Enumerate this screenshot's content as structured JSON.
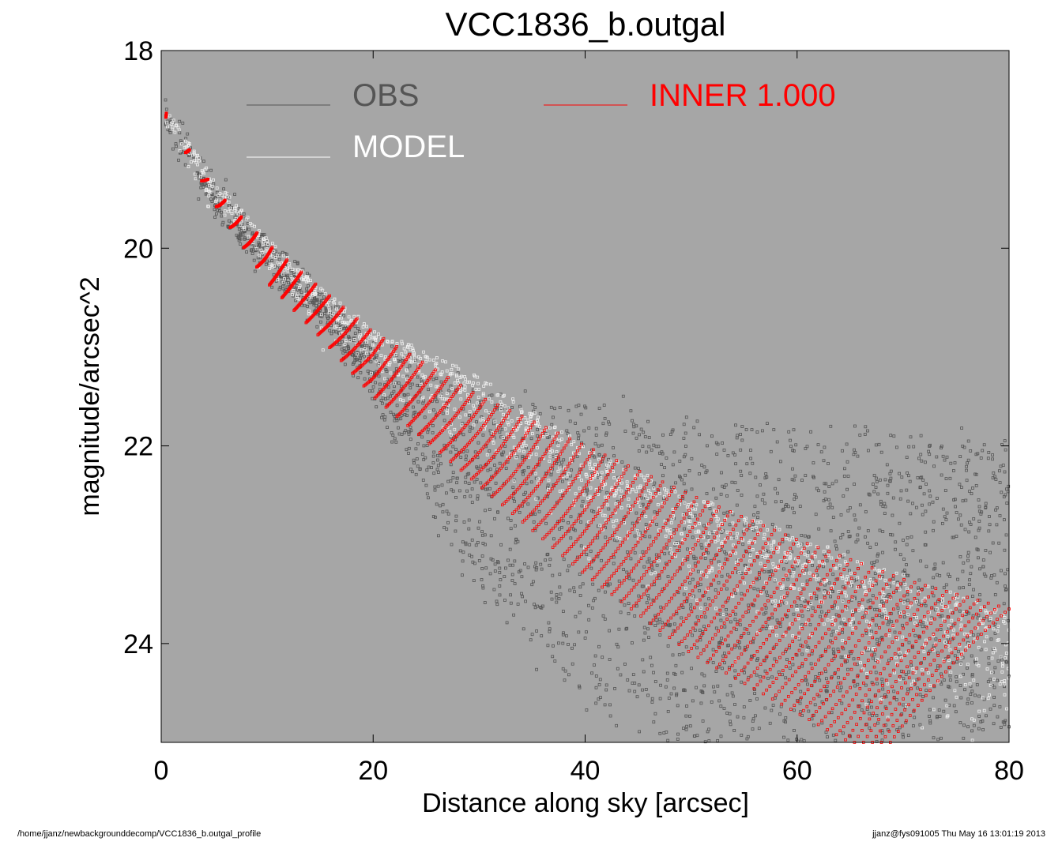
{
  "chart_data": {
    "type": "scatter",
    "title": "VCC1836_b.outgal",
    "xlabel": "Distance along sky [arcsec]",
    "ylabel": "magnitude/arcsec^2",
    "xlim": [
      0,
      80
    ],
    "ylim": [
      25,
      18
    ],
    "y_inverted": true,
    "x_ticks": [
      0,
      20,
      40,
      60,
      80
    ],
    "y_ticks": [
      18,
      20,
      22,
      24
    ],
    "grid": false,
    "legend_position": "top",
    "background_color": "#a6a6a6",
    "series": [
      {
        "name": "OBS",
        "color": "#555555",
        "marker": "square",
        "description_points": [
          [
            0.5,
            18.6
          ],
          [
            5,
            19.4
          ],
          [
            10,
            20.0
          ],
          [
            15,
            20.5
          ],
          [
            20,
            21.0
          ],
          [
            25,
            21.3
          ],
          [
            30,
            21.5
          ],
          [
            40,
            21.6
          ],
          [
            50,
            21.8
          ],
          [
            60,
            21.8
          ],
          [
            70,
            21.9
          ],
          [
            80,
            21.9
          ]
        ],
        "lower_envelope": [
          [
            0.5,
            18.7
          ],
          [
            5,
            19.6
          ],
          [
            10,
            20.2
          ],
          [
            15,
            20.7
          ],
          [
            20,
            21.5
          ],
          [
            25,
            22.5
          ],
          [
            30,
            23.5
          ],
          [
            40,
            24.6
          ],
          [
            50,
            25.0
          ]
        ]
      },
      {
        "name": "MODEL",
        "color": "#f0f0f0",
        "marker": "square",
        "description_points": [
          [
            0.5,
            18.6
          ],
          [
            5,
            19.3
          ],
          [
            10,
            19.9
          ],
          [
            15,
            20.4
          ],
          [
            20,
            20.8
          ],
          [
            30,
            21.3
          ],
          [
            40,
            22.0
          ],
          [
            50,
            22.5
          ],
          [
            60,
            22.9
          ],
          [
            70,
            23.3
          ],
          [
            80,
            23.7
          ]
        ]
      },
      {
        "name": "INNER  1.000",
        "color": "#ff0000",
        "marker": "square",
        "upper_curve": [
          [
            0.3,
            18.6
          ],
          [
            5,
            19.4
          ],
          [
            10,
            19.95
          ],
          [
            15,
            20.4
          ],
          [
            20,
            20.85
          ],
          [
            30,
            21.5
          ],
          [
            40,
            22.0
          ],
          [
            50,
            22.5
          ],
          [
            60,
            22.95
          ],
          [
            70,
            23.35
          ],
          [
            80,
            23.65
          ]
        ],
        "lower_curve": [
          [
            0.3,
            18.65
          ],
          [
            5,
            19.55
          ],
          [
            10,
            20.35
          ],
          [
            15,
            20.9
          ],
          [
            20,
            21.5
          ],
          [
            30,
            22.4
          ],
          [
            40,
            23.3
          ],
          [
            50,
            24.1
          ],
          [
            60,
            24.7
          ],
          [
            65,
            25.0
          ]
        ]
      }
    ]
  },
  "legend": {
    "obs_label": "OBS",
    "model_label": "MODEL",
    "inner_label": "INNER  1.000"
  },
  "footer": {
    "left": "/home/jjanz/newbackgrounddecomp/VCC1836_b.outgal_profile",
    "right": "jjanz@fys091005  Thu May 16 13:01:19 2013"
  }
}
